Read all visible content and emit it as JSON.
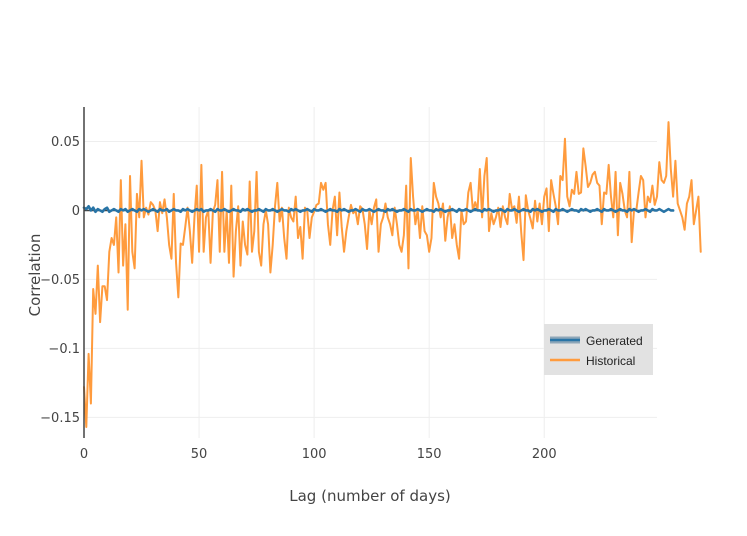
{
  "chart_data": {
    "type": "line",
    "title": "",
    "xlabel": "Lag (number of days)",
    "ylabel": "Correlation",
    "xlim": [
      0,
      249
    ],
    "ylim": [
      -0.165,
      0.075
    ],
    "xticks": [
      0,
      50,
      100,
      150,
      200
    ],
    "xtick_labels": [
      "0",
      "50",
      "100",
      "150",
      "200"
    ],
    "yticks": [
      -0.15,
      -0.1,
      -0.05,
      0,
      0.05
    ],
    "ytick_labels": [
      "−0.15",
      "−0.1",
      "−0.05",
      "0",
      "0.05"
    ],
    "grid": true,
    "legend_position": "bottom-right",
    "series": [
      {
        "name": "Generated",
        "color": "#2874a6",
        "x_start": 0,
        "x_step": 1,
        "values": [
          0.002,
          0.001,
          0.003,
          0.0,
          0.002,
          -0.001,
          0.001,
          0.0,
          -0.001,
          0.001,
          0.002,
          -0.001,
          0.0,
          0.001,
          0.0,
          -0.001,
          0.001,
          0.0,
          0.001,
          -0.001,
          0.0,
          0.001,
          0.0,
          -0.001,
          0.001,
          0.0,
          0.001,
          0.0,
          -0.001,
          0.0,
          0.001,
          0.0,
          -0.001,
          0.001,
          0.0,
          0.0,
          0.001,
          -0.001,
          0.0,
          0.001,
          0.0,
          0.0,
          -0.001,
          0.001,
          0.0,
          0.001,
          0.0,
          -0.001,
          0.0,
          0.001,
          0.0,
          0.001,
          -0.001,
          0.0,
          0.0,
          0.001,
          0.0,
          -0.001,
          0.001,
          0.0,
          0.0,
          0.001,
          0.0,
          -0.001,
          0.0,
          0.001,
          0.0,
          0.0,
          -0.001,
          0.001,
          0.0,
          0.001,
          0.0,
          -0.001,
          0.0,
          0.0,
          0.001,
          0.0,
          -0.001,
          0.001,
          0.0,
          0.0,
          0.001,
          0.0,
          -0.001,
          0.0,
          0.001,
          0.0,
          0.0,
          -0.001,
          0.001,
          0.0,
          0.001,
          0.0,
          -0.001,
          0.0,
          0.0,
          0.001,
          0.0,
          -0.001,
          0.001,
          0.0,
          0.0,
          0.001,
          0.0,
          -0.001,
          0.0,
          0.001,
          0.0,
          0.0,
          -0.001,
          0.001,
          0.0,
          0.001,
          0.0,
          -0.001,
          0.0,
          0.0,
          0.001,
          0.0,
          -0.001,
          0.001,
          0.0,
          0.0,
          0.001,
          0.0,
          -0.001,
          0.0,
          0.001,
          0.0,
          0.0,
          -0.001,
          0.001,
          0.0,
          0.001,
          0.0,
          -0.001,
          0.0,
          0.0,
          0.001,
          0.0,
          -0.001,
          0.001,
          0.0,
          0.0,
          0.001,
          0.0,
          -0.001,
          0.0,
          0.001,
          0.0,
          0.0,
          -0.001,
          0.001,
          0.0,
          0.001,
          0.0,
          -0.001,
          0.0,
          0.0,
          0.001,
          0.0,
          -0.001,
          0.001,
          0.0,
          0.0,
          0.001,
          0.0,
          -0.001,
          0.0,
          0.001,
          0.0,
          0.0,
          -0.001,
          0.001,
          0.0,
          0.001,
          0.0,
          -0.001,
          0.0,
          0.0,
          0.001,
          0.0,
          -0.001,
          0.001,
          0.0,
          0.0,
          0.001,
          0.0,
          -0.001,
          0.0,
          0.001,
          0.0,
          0.0,
          -0.001,
          0.001,
          0.0,
          0.001,
          0.0,
          -0.001,
          0.0,
          0.0,
          0.001,
          0.0,
          -0.001,
          0.001,
          0.0,
          0.0,
          0.001,
          0.0,
          -0.001,
          0.0,
          0.001,
          0.0,
          0.0,
          -0.001,
          0.001,
          0.0,
          0.001,
          0.0,
          -0.001,
          0.0,
          0.0,
          0.001,
          0.0,
          -0.001,
          0.001,
          0.0,
          0.0,
          0.001,
          0.0,
          -0.001,
          0.0,
          0.001,
          0.0,
          0.0,
          -0.001,
          0.001,
          0.0,
          0.001,
          0.0,
          -0.001,
          0.0,
          0.0,
          0.001,
          0.0,
          -0.001,
          0.001,
          0.0,
          0.0,
          0.001,
          0.0,
          -0.001,
          0.0,
          0.001,
          0.0,
          0.0
        ]
      },
      {
        "name": "Historical",
        "color": "#ff9b3d",
        "x_start": 0,
        "x_step": 1,
        "values": [
          -0.128,
          -0.157,
          -0.104,
          -0.14,
          -0.057,
          -0.075,
          -0.04,
          -0.081,
          -0.055,
          -0.055,
          -0.065,
          -0.03,
          -0.02,
          -0.025,
          -0.005,
          -0.045,
          0.022,
          -0.04,
          -0.01,
          -0.072,
          0.025,
          -0.03,
          -0.042,
          0.012,
          -0.005,
          0.036,
          -0.005,
          0.002,
          -0.003,
          0.006,
          0.004,
          0.0,
          -0.015,
          0.006,
          -0.002,
          0.008,
          -0.005,
          -0.025,
          -0.035,
          0.012,
          -0.038,
          -0.063,
          -0.024,
          -0.025,
          -0.012,
          0.002,
          -0.015,
          -0.038,
          -0.005,
          0.018,
          -0.03,
          0.033,
          -0.03,
          -0.005,
          0.0,
          -0.038,
          -0.001,
          0.004,
          0.022,
          -0.03,
          0.028,
          -0.03,
          0.0,
          -0.038,
          0.018,
          -0.048,
          -0.015,
          0.003,
          -0.04,
          -0.008,
          -0.025,
          -0.032,
          0.021,
          -0.03,
          -0.015,
          0.028,
          -0.03,
          -0.04,
          -0.01,
          0.0,
          -0.01,
          -0.045,
          -0.025,
          0.003,
          0.02,
          -0.008,
          0.002,
          -0.02,
          -0.035,
          0.002,
          -0.005,
          -0.008,
          0.01,
          -0.02,
          -0.012,
          -0.035,
          0.002,
          0.0,
          -0.02,
          -0.005,
          -0.001,
          0.004,
          0.005,
          0.02,
          0.015,
          0.02,
          -0.01,
          -0.025,
          0.0,
          0.01,
          -0.018,
          0.013,
          -0.012,
          -0.03,
          -0.015,
          -0.005,
          0.004,
          -0.002,
          0.0,
          -0.01,
          0.003,
          0.001,
          -0.01,
          -0.028,
          0.0,
          -0.01,
          0.002,
          0.008,
          -0.03,
          -0.01,
          -0.005,
          0.005,
          -0.005,
          -0.01,
          -0.018,
          0.002,
          -0.01,
          -0.025,
          -0.03,
          -0.018,
          0.018,
          -0.042,
          0.038,
          0.01,
          -0.01,
          0.0,
          -0.02,
          0.003,
          -0.015,
          -0.018,
          -0.03,
          -0.02,
          0.02,
          0.01,
          0.005,
          -0.005,
          0.005,
          -0.022,
          -0.005,
          0.003,
          -0.02,
          -0.01,
          -0.025,
          -0.035,
          0.0,
          -0.01,
          -0.008,
          0.013,
          0.02,
          0.0,
          0.006,
          0.0,
          0.03,
          -0.005,
          0.025,
          0.038,
          -0.015,
          -0.002,
          -0.01,
          -0.005,
          0.002,
          -0.012,
          0.003,
          -0.005,
          -0.01,
          0.012,
          0.001,
          0.003,
          -0.009,
          0.01,
          -0.016,
          -0.036,
          0.011,
          0.0,
          -0.006,
          -0.013,
          0.007,
          -0.008,
          0.005,
          -0.01,
          0.01,
          0.016,
          -0.015,
          0.022,
          0.012,
          0.003,
          -0.01,
          0.025,
          0.022,
          0.052,
          0.01,
          0.003,
          0.015,
          0.012,
          0.028,
          0.012,
          0.013,
          0.045,
          0.032,
          0.017,
          0.02,
          0.026,
          0.028,
          0.02,
          0.018,
          -0.01,
          0.013,
          0.012,
          0.033,
          0.01,
          -0.005,
          0.028,
          -0.018,
          0.02,
          0.012,
          0.0,
          -0.005,
          0.028,
          -0.023,
          0.0,
          0.0,
          0.013,
          0.025,
          0.022,
          -0.005,
          0.01,
          0.006,
          0.018,
          0.004,
          0.01,
          0.035,
          0.022,
          0.02,
          0.025,
          0.064,
          0.03,
          0.01,
          0.036,
          0.005,
          0.0,
          -0.005,
          -0.014,
          0.005,
          0.01,
          0.022,
          -0.01,
          0.0,
          0.01,
          -0.03
        ]
      }
    ]
  }
}
